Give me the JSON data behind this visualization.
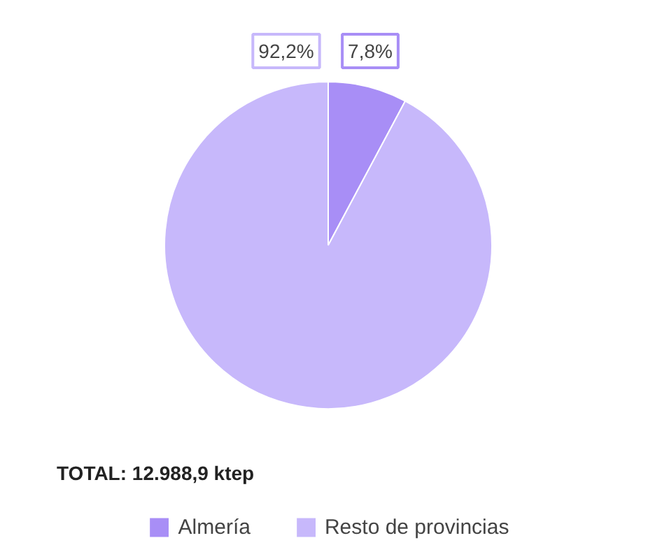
{
  "chart_data": {
    "type": "pie",
    "categories": [
      "Almería",
      "Resto de provincias"
    ],
    "values": [
      7.8,
      92.2
    ],
    "colors": [
      "#a88ef6",
      "#c7b8fb"
    ],
    "value_labels": [
      "7,8%",
      "92,2%"
    ],
    "annotations": [
      "TOTAL: 12.988,9 ktep"
    ],
    "legend": "bottom"
  }
}
